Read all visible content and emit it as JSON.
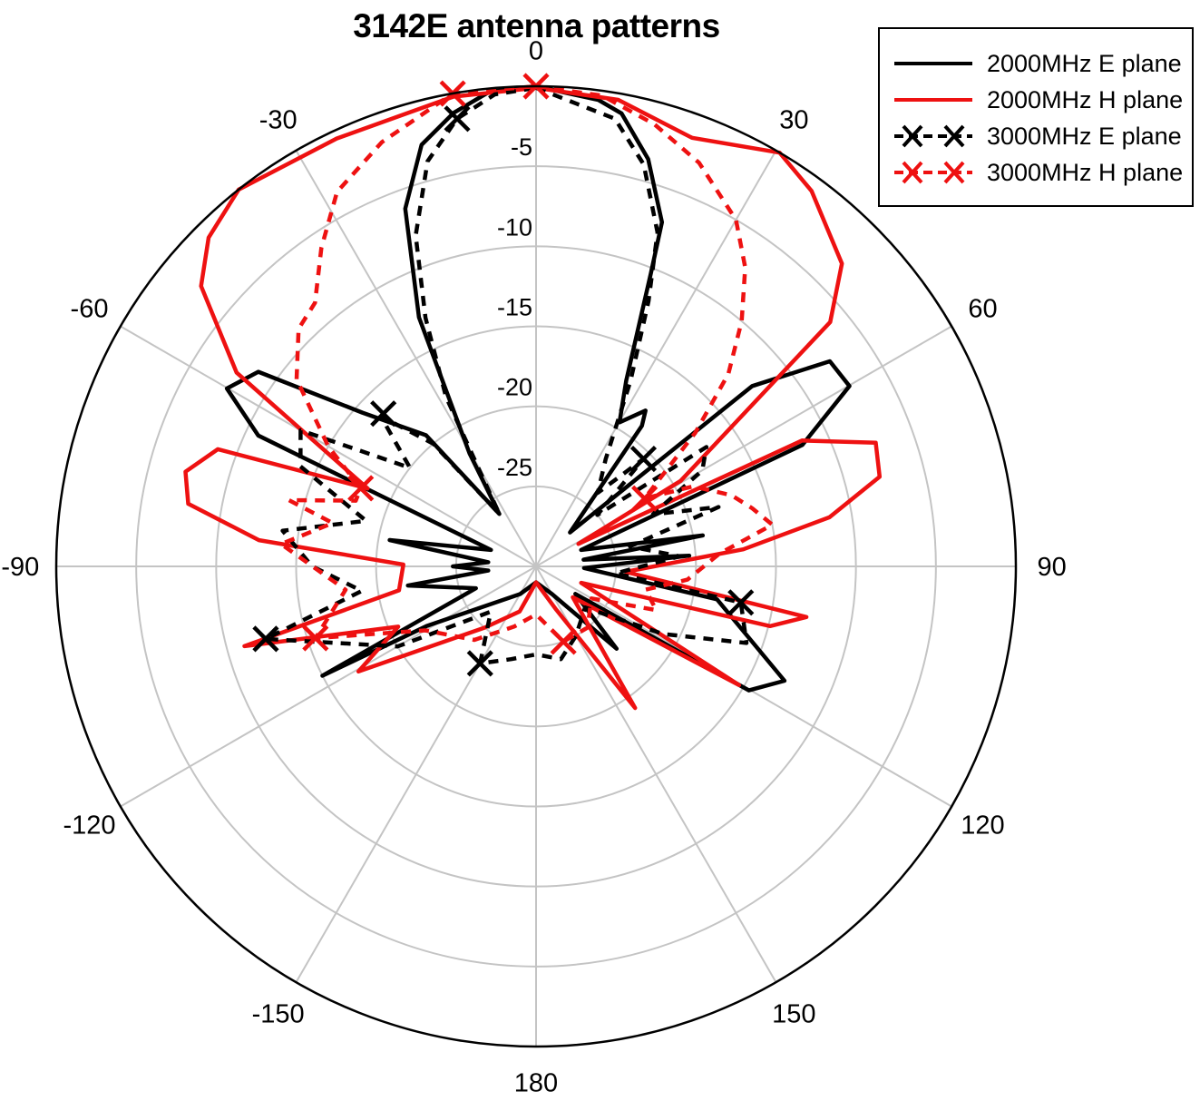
{
  "chart_data": {
    "type": "polar-line",
    "title": "3142E antenna patterns",
    "angle_unit": "degrees",
    "angle_zero": "top",
    "angle_direction": "clockwise",
    "angle_ticks": [
      0,
      30,
      60,
      90,
      120,
      150,
      180,
      -150,
      -120,
      -90,
      -60,
      -30
    ],
    "radial_unit": "dB",
    "radial_range": [
      -30,
      0
    ],
    "radial_ticks": [
      -5,
      -10,
      -15,
      -20,
      -25
    ],
    "grid": true,
    "legend_position": "top-right",
    "series": [
      {
        "name": "2000MHz E plane",
        "color": "#000000",
        "dash": "solid",
        "marker": "none",
        "points": [
          [
            0,
            0
          ],
          [
            7.6,
            -0.6
          ],
          [
            10.7,
            -1.2
          ],
          [
            15.4,
            -3.6
          ],
          [
            20.1,
            -7.1
          ],
          [
            21.4,
            -10.3
          ],
          [
            25.9,
            -17.1
          ],
          [
            30.1,
            -19.6
          ],
          [
            35.1,
            -18.1
          ],
          [
            37,
            -19
          ],
          [
            45,
            -27
          ],
          [
            50.2,
            -12.4
          ],
          [
            55.1,
            -7.6
          ],
          [
            60.1,
            -7.4
          ],
          [
            65.5,
            -11.7
          ],
          [
            70,
            -27
          ],
          [
            79.5,
            -19.4
          ],
          [
            82,
            -27
          ],
          [
            86,
            -20.4
          ],
          [
            92,
            -27
          ],
          [
            100.3,
            -18.5
          ],
          [
            114.7,
            -12.9
          ],
          [
            120.2,
            -14.6
          ],
          [
            125,
            -27
          ],
          [
            135.6,
            -22.8
          ],
          [
            150,
            -28
          ],
          [
            180,
            -29
          ],
          [
            -150,
            -28
          ],
          [
            -118.6,
            -22.2
          ],
          [
            -117.1,
            -15
          ],
          [
            -110,
            -26
          ],
          [
            -98.5,
            -21.9
          ],
          [
            -95,
            -27
          ],
          [
            -90,
            -24.8
          ],
          [
            -85,
            -27
          ],
          [
            -79.8,
            -20.7
          ],
          [
            -70,
            -27
          ],
          [
            -64.8,
            -10.8
          ],
          [
            -60.1,
            -7.7
          ],
          [
            -55,
            -8.8
          ],
          [
            -48.5,
            -15.5
          ],
          [
            -40,
            -19.3
          ],
          [
            -35,
            -26
          ],
          [
            -30.5,
            -21.8
          ],
          [
            -25.2,
            -12.8
          ],
          [
            -20.1,
            -6.2
          ],
          [
            -15.2,
            -2.7
          ],
          [
            -10.3,
            -1.2
          ],
          [
            -5.6,
            -0.2
          ],
          [
            0,
            0
          ]
        ]
      },
      {
        "name": "2000MHz H plane",
        "color": "#ee1111",
        "dash": "solid",
        "marker": "none",
        "points": [
          [
            0,
            -0.1
          ],
          [
            10,
            -0.4
          ],
          [
            20,
            -1.5
          ],
          [
            30.5,
            0
          ],
          [
            36.3,
            -0.9
          ],
          [
            45.3,
            -3.1
          ],
          [
            50.3,
            -6.1
          ],
          [
            59.4,
            -19.5
          ],
          [
            62,
            -27
          ],
          [
            64.7,
            -11.6
          ],
          [
            70,
            -7.4
          ],
          [
            75.4,
            -7.8
          ],
          [
            80.5,
            -11.4
          ],
          [
            85.3,
            -17
          ],
          [
            93.5,
            -24.4
          ],
          [
            100.6,
            -12.8
          ],
          [
            104.3,
            -14.9
          ],
          [
            110,
            -27
          ],
          [
            120.3,
            -15.3
          ],
          [
            130,
            -27
          ],
          [
            145,
            -19.2
          ],
          [
            155,
            -27
          ],
          [
            180,
            -29
          ],
          [
            -160,
            -27
          ],
          [
            -140,
            -25
          ],
          [
            -120.6,
            -17.1
          ],
          [
            -113.6,
            -20.6
          ],
          [
            -105.3,
            -11.1
          ],
          [
            -99.9,
            -21.3
          ],
          [
            -89.2,
            -21.7
          ],
          [
            -84.6,
            -12.6
          ],
          [
            -79.8,
            -7.9
          ],
          [
            -74.9,
            -7.3
          ],
          [
            -69.8,
            -8.8
          ],
          [
            -65.2,
            -18.4
          ],
          [
            -57.1,
            -7.7
          ],
          [
            -50.1,
            -2.7
          ],
          [
            -44.9,
            -1
          ],
          [
            -38.3,
            0
          ],
          [
            -25,
            -0.5
          ],
          [
            -10,
            -0.2
          ],
          [
            0,
            -0.1
          ]
        ]
      },
      {
        "name": "3000MHz E plane",
        "color": "#000000",
        "dash": "dashed",
        "marker": "x",
        "marker_angles": [
          -10,
          45,
          100,
          -105,
          -150,
          -45
        ],
        "points": [
          [
            0,
            -0.1
          ],
          [
            10,
            -1.6
          ],
          [
            15,
            -4
          ],
          [
            20,
            -7.8
          ],
          [
            23,
            -12
          ],
          [
            27,
            -17
          ],
          [
            33,
            -22
          ],
          [
            40,
            -24
          ],
          [
            45,
            -20.5
          ],
          [
            50,
            -25
          ],
          [
            55,
            -17
          ],
          [
            60,
            -18
          ],
          [
            66,
            -22
          ],
          [
            72,
            -18
          ],
          [
            78,
            -24
          ],
          [
            86,
            -21
          ],
          [
            95,
            -25
          ],
          [
            100,
            -17
          ],
          [
            110,
            -16
          ],
          [
            118,
            -21
          ],
          [
            130,
            -26
          ],
          [
            150,
            -25
          ],
          [
            165,
            -24
          ],
          [
            180,
            -24.5
          ],
          [
            -165,
            -24
          ],
          [
            -150,
            -23
          ],
          [
            -135,
            -26
          ],
          [
            -120,
            -20
          ],
          [
            -105,
            -12.5
          ],
          [
            -98,
            -19
          ],
          [
            -90,
            -16
          ],
          [
            -82,
            -14
          ],
          [
            -75,
            -19
          ],
          [
            -67,
            -14
          ],
          [
            -60,
            -13
          ],
          [
            -52,
            -20
          ],
          [
            -46,
            -16.5
          ],
          [
            -40,
            -20
          ],
          [
            -35,
            -26
          ],
          [
            -28,
            -18
          ],
          [
            -24,
            -13
          ],
          [
            -20,
            -8
          ],
          [
            -15,
            -3.8
          ],
          [
            -10,
            -1.6
          ],
          [
            -5,
            -0.4
          ],
          [
            0,
            -0.1
          ]
        ]
      },
      {
        "name": "3000MHz H plane",
        "color": "#ee1111",
        "dash": "dashed",
        "marker": "x",
        "marker_angles": [
          0,
          -10,
          -66,
          58,
          -108,
          160
        ],
        "points": [
          [
            0,
            0
          ],
          [
            8,
            -0.3
          ],
          [
            15,
            -1.4
          ],
          [
            22,
            -2.8
          ],
          [
            30,
            -5
          ],
          [
            35,
            -7.2
          ],
          [
            40,
            -10
          ],
          [
            45,
            -13
          ],
          [
            50,
            -17
          ],
          [
            58,
            -22
          ],
          [
            63,
            -19
          ],
          [
            70,
            -17
          ],
          [
            75,
            -16
          ],
          [
            80,
            -15
          ],
          [
            86,
            -18.5
          ],
          [
            95,
            -20.5
          ],
          [
            102,
            -23
          ],
          [
            110,
            -22
          ],
          [
            120,
            -26
          ],
          [
            140,
            -25
          ],
          [
            160,
            -25
          ],
          [
            180,
            -27
          ],
          [
            -160,
            -26
          ],
          [
            -140,
            -24
          ],
          [
            -120,
            -22
          ],
          [
            -108,
            -15.5
          ],
          [
            -97,
            -18
          ],
          [
            -85,
            -14
          ],
          [
            -78,
            -17
          ],
          [
            -75,
            -14
          ],
          [
            -70,
            -18
          ],
          [
            -66,
            -18
          ],
          [
            -60,
            -15
          ],
          [
            -52,
            -11
          ],
          [
            -45,
            -9
          ],
          [
            -40,
            -8.5
          ],
          [
            -34,
            -6
          ],
          [
            -28,
            -3.5
          ],
          [
            -20,
            -1.8
          ],
          [
            -10,
            0
          ],
          [
            0,
            0
          ]
        ]
      }
    ]
  },
  "legend": {
    "items": [
      {
        "label": "2000MHz E plane"
      },
      {
        "label": "2000MHz H plane"
      },
      {
        "label": "3000MHz E plane"
      },
      {
        "label": "3000MHz H plane"
      }
    ]
  }
}
